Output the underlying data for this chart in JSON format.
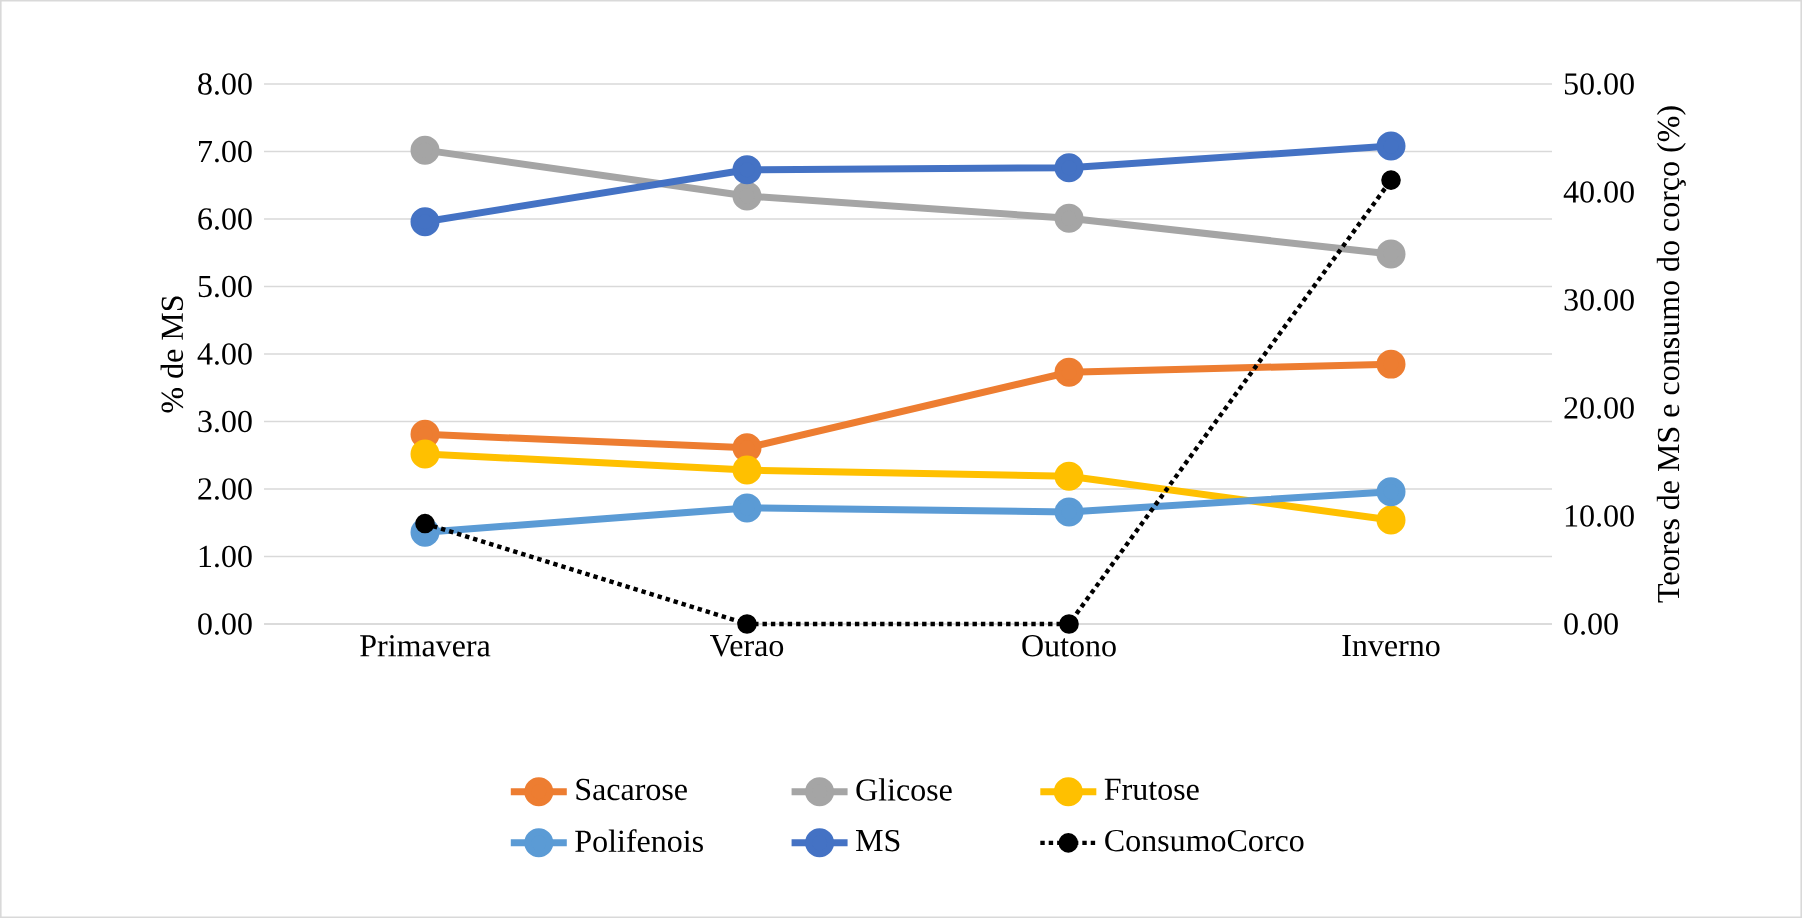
{
  "chart_data": {
    "type": "line",
    "categories": [
      "Primavera",
      "Verao",
      "Outono",
      "Inverno"
    ],
    "ylabel": "% de MS",
    "y2label": "Teores de MS e consumo do corço (%)",
    "ylim": [
      0,
      8
    ],
    "yticks": [
      {
        "value": 0,
        "label": "0.00"
      },
      {
        "value": 1,
        "label": "1.00"
      },
      {
        "value": 2,
        "label": "2.00"
      },
      {
        "value": 3,
        "label": "3.00"
      },
      {
        "value": 4,
        "label": "4.00"
      },
      {
        "value": 5,
        "label": "5.00"
      },
      {
        "value": 6,
        "label": "6.00"
      },
      {
        "value": 7,
        "label": "7.00"
      },
      {
        "value": 8,
        "label": "8.00"
      }
    ],
    "y2lim": [
      0,
      50
    ],
    "y2ticks": [
      {
        "value": 0,
        "label": "0.00"
      },
      {
        "value": 10,
        "label": "10.00"
      },
      {
        "value": 20,
        "label": "20.00"
      },
      {
        "value": 30,
        "label": "30.00"
      },
      {
        "value": 40,
        "label": "40.00"
      },
      {
        "value": 50,
        "label": "50.00"
      }
    ],
    "grid": "y",
    "legend": "bottom",
    "marker": "circle",
    "series": [
      {
        "name": "Sacarose",
        "color": "#ed7d31",
        "values": [
          2.81,
          2.61,
          3.73,
          3.85
        ]
      },
      {
        "name": "Glicose",
        "color": "#a5a5a5",
        "values": [
          7.02,
          6.34,
          6.01,
          5.48
        ]
      },
      {
        "name": "Frutose",
        "color": "#ffc000",
        "values": [
          2.52,
          2.28,
          2.19,
          1.54
        ]
      },
      {
        "name": "Polifenois",
        "color": "#5b9bd5",
        "values": [
          1.36,
          1.72,
          1.66,
          1.96
        ]
      },
      {
        "name": "MS",
        "color": "#4472c4",
        "values": [
          5.96,
          6.73,
          6.76,
          7.08
        ]
      },
      {
        "name": "ConsumoCorco",
        "color": "#000000",
        "values": [
          9.3,
          0,
          0,
          41.1
        ],
        "axis": "y2",
        "line_style": "dotted"
      }
    ]
  }
}
